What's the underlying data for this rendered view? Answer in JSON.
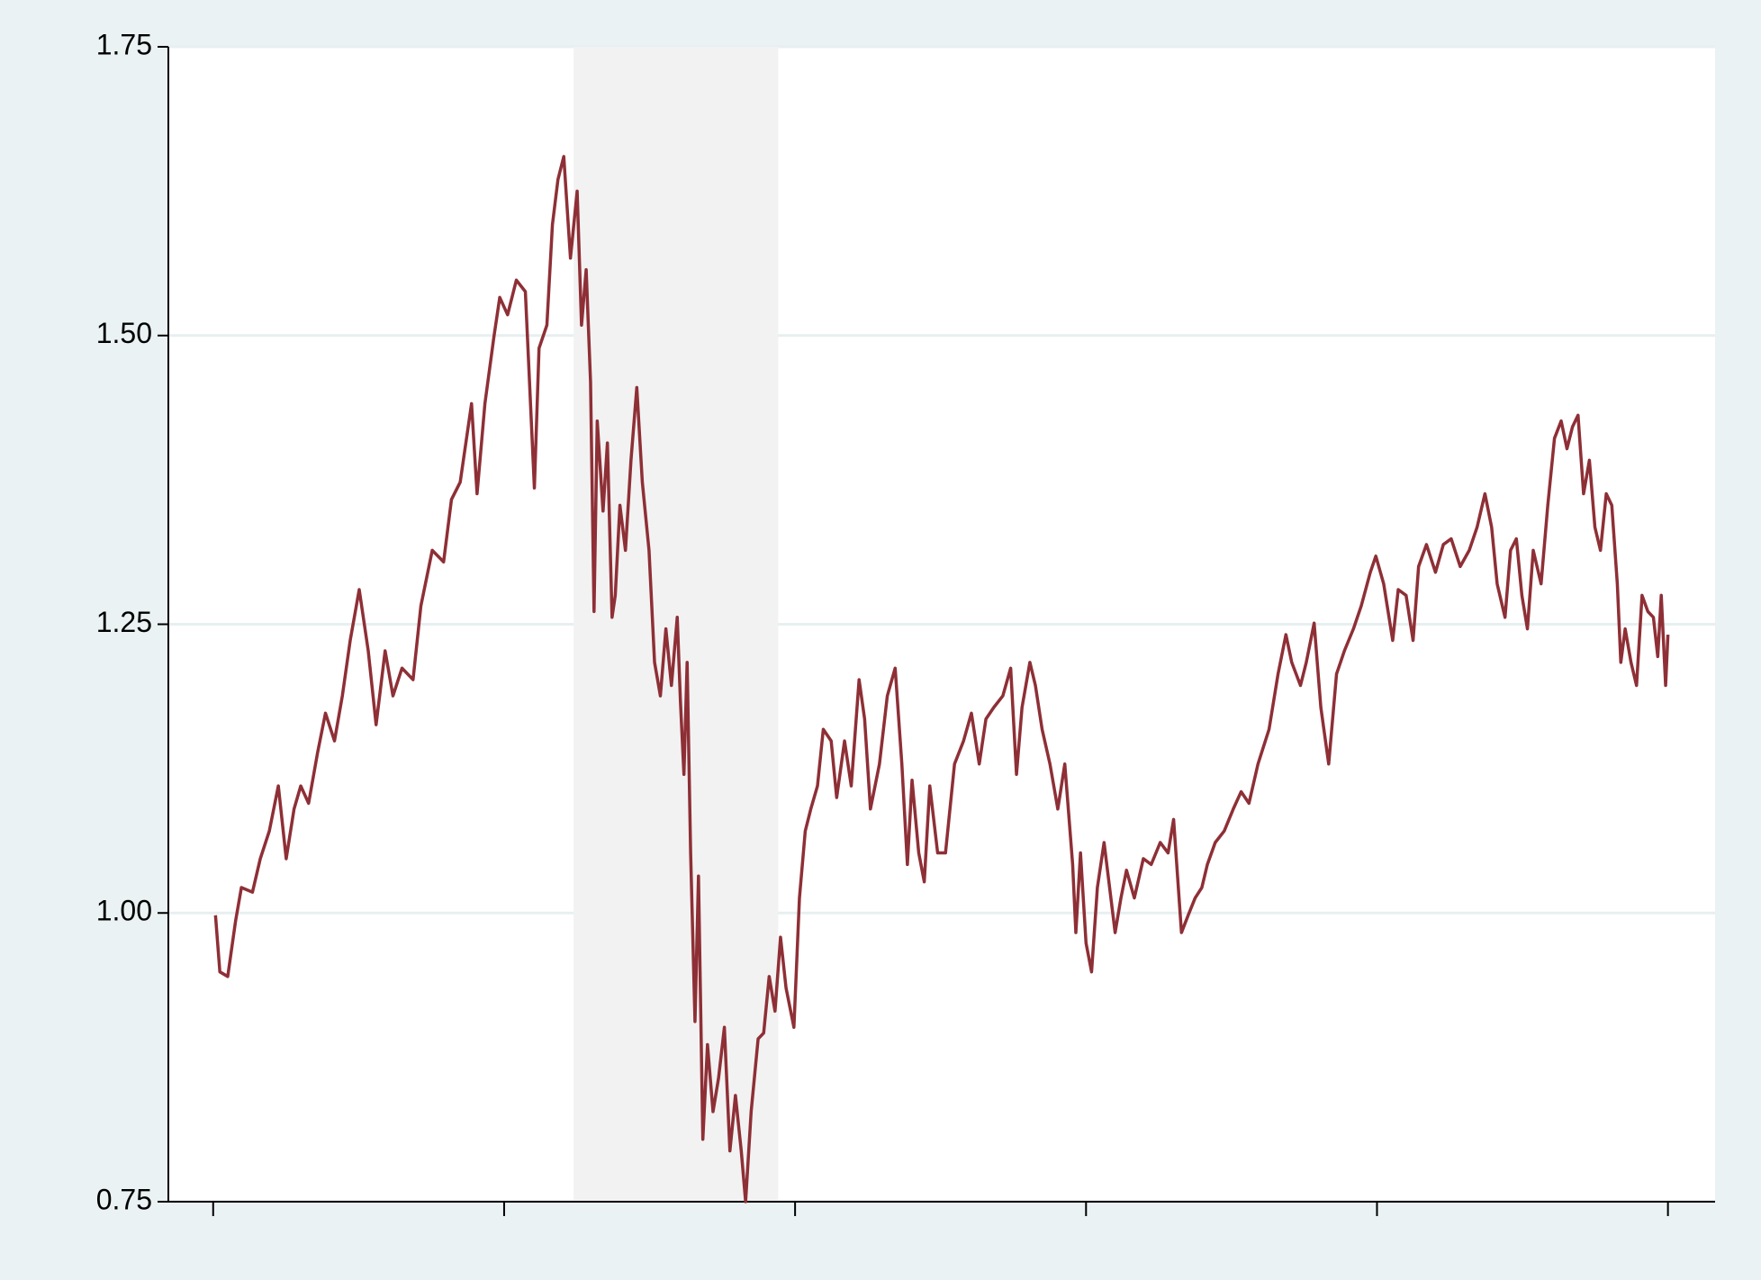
{
  "chart_data": {
    "type": "line",
    "color": "#8e2f36",
    "grid": true,
    "grid_color": "#e7eff1",
    "shade": {
      "x": [
        1.239,
        1.942
      ],
      "color": "#f2f2f2"
    },
    "xlim": [
      -0.154,
      5.162
    ],
    "xticks": [
      0,
      1,
      2,
      3,
      4,
      5
    ],
    "ylim": [
      0.75,
      1.75
    ],
    "yticks": [
      {
        "value": 0.75,
        "label": "0.75"
      },
      {
        "value": 1.0,
        "label": "1.00"
      },
      {
        "value": 1.25,
        "label": "1.25"
      },
      {
        "value": 1.5,
        "label": "1.50"
      },
      {
        "value": 1.75,
        "label": "1.75"
      }
    ],
    "x": [
      0.008,
      0.023,
      0.05,
      0.077,
      0.097,
      0.135,
      0.162,
      0.193,
      0.224,
      0.251,
      0.278,
      0.301,
      0.328,
      0.359,
      0.386,
      0.417,
      0.444,
      0.471,
      0.502,
      0.533,
      0.56,
      0.591,
      0.618,
      0.649,
      0.687,
      0.714,
      0.753,
      0.792,
      0.819,
      0.849,
      0.888,
      0.907,
      0.934,
      0.965,
      0.985,
      1.012,
      1.042,
      1.073,
      1.104,
      1.12,
      1.147,
      1.166,
      1.185,
      1.205,
      1.228,
      1.251,
      1.266,
      1.282,
      1.297,
      1.309,
      1.32,
      1.34,
      1.355,
      1.371,
      1.382,
      1.398,
      1.417,
      1.436,
      1.456,
      1.475,
      1.498,
      1.517,
      1.537,
      1.556,
      1.575,
      1.595,
      1.606,
      1.618,
      1.629,
      1.641,
      1.656,
      1.668,
      1.683,
      1.699,
      1.718,
      1.737,
      1.757,
      1.776,
      1.795,
      1.815,
      1.83,
      1.849,
      1.873,
      1.892,
      1.911,
      1.931,
      1.95,
      1.969,
      1.996,
      2.015,
      2.035,
      2.054,
      2.077,
      2.097,
      2.124,
      2.143,
      2.17,
      2.193,
      2.22,
      2.239,
      2.259,
      2.29,
      2.317,
      2.344,
      2.367,
      2.386,
      2.402,
      2.425,
      2.444,
      2.463,
      2.49,
      2.517,
      2.548,
      2.579,
      2.606,
      2.633,
      2.656,
      2.683,
      2.714,
      2.741,
      2.761,
      2.78,
      2.807,
      2.826,
      2.849,
      2.876,
      2.903,
      2.927,
      2.954,
      2.965,
      2.981,
      3.0,
      3.019,
      3.039,
      3.062,
      3.081,
      3.1,
      3.12,
      3.139,
      3.166,
      3.197,
      3.224,
      3.255,
      3.282,
      3.301,
      3.328,
      3.351,
      3.375,
      3.398,
      3.417,
      3.444,
      3.475,
      3.506,
      3.533,
      3.56,
      3.591,
      3.629,
      3.66,
      3.687,
      3.707,
      3.737,
      3.757,
      3.784,
      3.807,
      3.834,
      3.861,
      3.888,
      3.919,
      3.946,
      3.977,
      3.996,
      4.023,
      4.054,
      4.073,
      4.1,
      4.124,
      4.143,
      4.17,
      4.201,
      4.228,
      4.255,
      4.286,
      4.317,
      4.344,
      4.371,
      4.394,
      4.413,
      4.44,
      4.459,
      4.479,
      4.498,
      4.517,
      4.537,
      4.564,
      4.587,
      4.61,
      4.633,
      4.653,
      4.672,
      4.691,
      4.71,
      4.73,
      4.749,
      4.768,
      4.788,
      4.807,
      4.826,
      4.838,
      4.853,
      4.873,
      4.892,
      4.911,
      4.931,
      4.95,
      4.965,
      4.977,
      4.992,
      5.0
    ],
    "values": [
      0.998,
      0.949,
      0.945,
      0.993,
      1.022,
      1.018,
      1.047,
      1.071,
      1.11,
      1.047,
      1.09,
      1.11,
      1.095,
      1.139,
      1.173,
      1.149,
      1.188,
      1.236,
      1.28,
      1.227,
      1.163,
      1.227,
      1.188,
      1.212,
      1.202,
      1.266,
      1.314,
      1.304,
      1.358,
      1.373,
      1.441,
      1.363,
      1.441,
      1.499,
      1.533,
      1.518,
      1.548,
      1.538,
      1.368,
      1.489,
      1.509,
      1.596,
      1.635,
      1.655,
      1.567,
      1.625,
      1.509,
      1.557,
      1.46,
      1.261,
      1.426,
      1.348,
      1.407,
      1.256,
      1.275,
      1.353,
      1.314,
      1.392,
      1.455,
      1.373,
      1.314,
      1.217,
      1.188,
      1.246,
      1.197,
      1.256,
      1.183,
      1.12,
      1.217,
      1.052,
      0.906,
      1.032,
      0.804,
      0.886,
      0.828,
      0.857,
      0.901,
      0.794,
      0.842,
      0.794,
      0.75,
      0.828,
      0.891,
      0.896,
      0.945,
      0.915,
      0.979,
      0.935,
      0.901,
      1.013,
      1.071,
      1.09,
      1.11,
      1.159,
      1.149,
      1.1,
      1.149,
      1.11,
      1.202,
      1.168,
      1.09,
      1.129,
      1.188,
      1.212,
      1.129,
      1.042,
      1.115,
      1.052,
      1.027,
      1.11,
      1.052,
      1.052,
      1.129,
      1.149,
      1.173,
      1.129,
      1.168,
      1.178,
      1.188,
      1.212,
      1.12,
      1.178,
      1.217,
      1.197,
      1.159,
      1.129,
      1.09,
      1.129,
      1.042,
      0.983,
      1.052,
      0.974,
      0.949,
      1.022,
      1.061,
      1.022,
      0.983,
      1.013,
      1.037,
      1.013,
      1.047,
      1.042,
      1.061,
      1.052,
      1.081,
      0.983,
      0.998,
      1.013,
      1.022,
      1.042,
      1.061,
      1.071,
      1.09,
      1.105,
      1.095,
      1.129,
      1.159,
      1.207,
      1.241,
      1.217,
      1.197,
      1.217,
      1.251,
      1.178,
      1.129,
      1.207,
      1.227,
      1.246,
      1.266,
      1.295,
      1.309,
      1.285,
      1.236,
      1.28,
      1.275,
      1.236,
      1.3,
      1.319,
      1.295,
      1.319,
      1.324,
      1.3,
      1.314,
      1.334,
      1.363,
      1.334,
      1.285,
      1.256,
      1.314,
      1.324,
      1.275,
      1.246,
      1.314,
      1.285,
      1.353,
      1.411,
      1.426,
      1.402,
      1.421,
      1.431,
      1.363,
      1.392,
      1.334,
      1.314,
      1.363,
      1.353,
      1.285,
      1.217,
      1.246,
      1.217,
      1.197,
      1.275,
      1.261,
      1.256,
      1.222,
      1.275,
      1.197,
      1.241
    ]
  }
}
